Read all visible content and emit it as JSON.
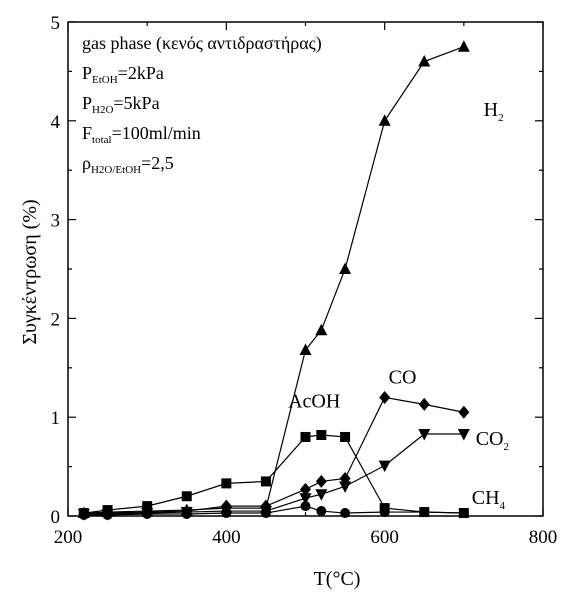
{
  "chart_data": {
    "type": "line",
    "xlabel": "T(°C)",
    "ylabel": "Συγκέντρωση (%)",
    "xlim": [
      200,
      800
    ],
    "ylim": [
      0,
      5
    ],
    "xticks": [
      200,
      400,
      600,
      800
    ],
    "yticks": [
      0,
      1,
      2,
      3,
      4,
      5
    ],
    "grid": false,
    "annotation": {
      "line1": "gas phase (κενός αντιδραστήρας)",
      "p_etoh": {
        "main": "P",
        "sub": "EtOH",
        "rest": "=2kPa"
      },
      "p_h2o": {
        "main": "P",
        "sub": "H2O",
        "rest": "=5kPa"
      },
      "f_total": {
        "main": "F",
        "sub": "total",
        "rest": "=100ml/min"
      },
      "rho": {
        "main": "ρ",
        "sub": "H2O/EtOH",
        "rest": "=2,5"
      }
    },
    "series": [
      {
        "name": "H2",
        "marker": "triangle",
        "color": "#000000",
        "label": {
          "main": "H",
          "sub": "2"
        },
        "points": [
          [
            220,
            0.03
          ],
          [
            250,
            0.04
          ],
          [
            300,
            0.05
          ],
          [
            350,
            0.06
          ],
          [
            400,
            0.08
          ],
          [
            450,
            0.08
          ],
          [
            500,
            1.68
          ],
          [
            520,
            1.88
          ],
          [
            550,
            2.5
          ],
          [
            600,
            4.0
          ],
          [
            650,
            4.6
          ],
          [
            700,
            4.75
          ]
        ]
      },
      {
        "name": "AcOH",
        "marker": "square",
        "color": "#000000",
        "label": {
          "main": "AcOH",
          "sub": ""
        },
        "points": [
          [
            220,
            0.03
          ],
          [
            250,
            0.06
          ],
          [
            300,
            0.1
          ],
          [
            350,
            0.2
          ],
          [
            400,
            0.33
          ],
          [
            450,
            0.35
          ],
          [
            500,
            0.8
          ],
          [
            520,
            0.82
          ],
          [
            550,
            0.8
          ],
          [
            600,
            0.08
          ],
          [
            650,
            0.04
          ],
          [
            700,
            0.03
          ]
        ]
      },
      {
        "name": "CO",
        "marker": "diamond",
        "color": "#000000",
        "label": {
          "main": "CO",
          "sub": ""
        },
        "points": [
          [
            220,
            0.02
          ],
          [
            250,
            0.03
          ],
          [
            300,
            0.04
          ],
          [
            350,
            0.05
          ],
          [
            400,
            0.1
          ],
          [
            450,
            0.1
          ],
          [
            500,
            0.27
          ],
          [
            520,
            0.35
          ],
          [
            550,
            0.38
          ],
          [
            600,
            1.2
          ],
          [
            650,
            1.13
          ],
          [
            700,
            1.05
          ]
        ]
      },
      {
        "name": "CO2",
        "marker": "triangle-down",
        "color": "#000000",
        "label": {
          "main": "CO",
          "sub": "2"
        },
        "points": [
          [
            220,
            0.02
          ],
          [
            250,
            0.02
          ],
          [
            300,
            0.03
          ],
          [
            350,
            0.04
          ],
          [
            400,
            0.05
          ],
          [
            450,
            0.05
          ],
          [
            500,
            0.18
          ],
          [
            520,
            0.22
          ],
          [
            550,
            0.3
          ],
          [
            600,
            0.51
          ],
          [
            650,
            0.83
          ],
          [
            700,
            0.83
          ]
        ]
      },
      {
        "name": "CH4",
        "marker": "circle",
        "color": "#000000",
        "label": {
          "main": "CH",
          "sub": "4"
        },
        "points": [
          [
            220,
            0.01
          ],
          [
            250,
            0.01
          ],
          [
            300,
            0.02
          ],
          [
            350,
            0.02
          ],
          [
            400,
            0.03
          ],
          [
            450,
            0.03
          ],
          [
            500,
            0.1
          ],
          [
            520,
            0.05
          ],
          [
            550,
            0.03
          ],
          [
            600,
            0.04
          ],
          [
            650,
            0.04
          ],
          [
            700,
            0.03
          ]
        ]
      }
    ]
  }
}
